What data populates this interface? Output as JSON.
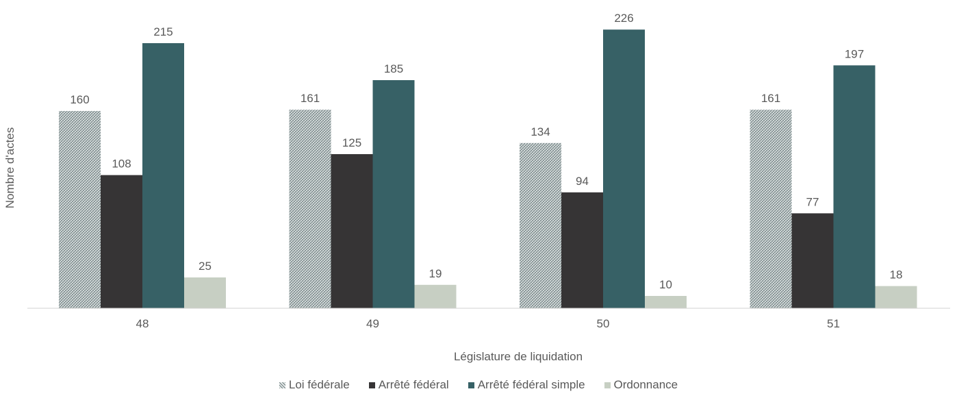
{
  "chart_data": {
    "type": "bar",
    "title": "",
    "xlabel": "Législature de liquidation",
    "ylabel": "Nombre d'actes",
    "ylim": [
      0,
      240
    ],
    "grid": false,
    "legend_position": "bottom",
    "categories": [
      "48",
      "49",
      "50",
      "51"
    ],
    "series": [
      {
        "name": "Loi fédérale",
        "values": [
          160,
          161,
          134,
          161
        ],
        "color": "#9aa8a8",
        "pattern": "crosshatch"
      },
      {
        "name": "Arrêté fédéral",
        "values": [
          108,
          125,
          94,
          77
        ],
        "color": "#363435"
      },
      {
        "name": "Arrêté fédéral simple",
        "values": [
          215,
          185,
          226,
          197
        ],
        "color": "#376166"
      },
      {
        "name": "Ordonnance",
        "values": [
          25,
          19,
          10,
          18
        ],
        "color": "#c7cfc3"
      }
    ]
  }
}
